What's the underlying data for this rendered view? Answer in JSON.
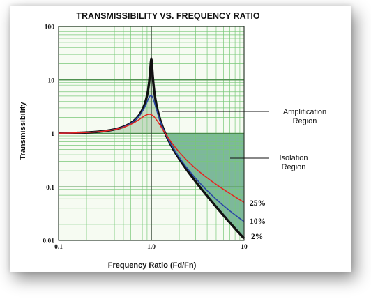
{
  "chart_data": {
    "type": "line",
    "title": "TRANSMISSIBILITY VS. FREQUENCY RATIO",
    "xlabel": "Frequency Ratio  (Fd/Fn)",
    "ylabel": "Transmissibility",
    "x_scale": "log",
    "y_scale": "log",
    "xlim": [
      0.1,
      10
    ],
    "ylim": [
      0.01,
      100
    ],
    "x_ticks": [
      "0.1",
      "1.0",
      "10"
    ],
    "y_ticks": [
      "0.01",
      "0.1",
      "1",
      "10",
      "100"
    ],
    "grid": true,
    "colors": {
      "grid": "#78c878",
      "plot_bg": "#f6fbf2",
      "amplification_fill": "#c7dcc4",
      "isolation_fill": "#7db89b",
      "c25": "#e8231e",
      "c10": "#2b46a6",
      "c2": "#111111"
    },
    "series": [
      {
        "name": "25%",
        "damping": 0.25,
        "color": "#e8231e"
      },
      {
        "name": "10%",
        "damping": 0.1,
        "color": "#2b46a6"
      },
      {
        "name": "2%",
        "damping": 0.02,
        "color": "#111111"
      }
    ],
    "annotations": {
      "amplification": [
        "Amplification",
        "Region"
      ],
      "isolation": [
        "Isolation",
        "Region"
      ]
    }
  }
}
